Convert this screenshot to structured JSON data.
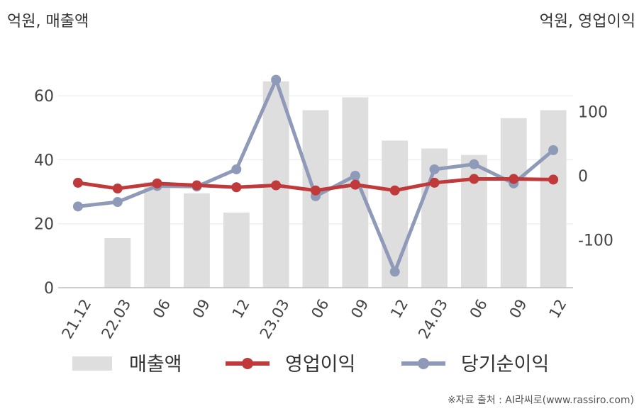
{
  "chart_data": {
    "type": "bar+line",
    "categories": [
      "21.12",
      "22.03",
      "06",
      "09",
      "12",
      "23.03",
      "06",
      "09",
      "12",
      "24.03",
      "06",
      "09",
      "12"
    ],
    "left_axis": {
      "unit_label": "억원, 매출액",
      "ylim": [
        0,
        70
      ],
      "ticks": [
        0,
        20,
        40,
        60
      ]
    },
    "right_axis": {
      "unit_label": "억원, 영업이익",
      "ylim": [
        -175,
        175
      ],
      "ticks": [
        -100,
        0,
        100
      ]
    },
    "series": [
      {
        "name": "매출액",
        "type": "bar",
        "axis": "left",
        "color": "#dedede",
        "values": [
          0,
          15.5,
          33,
          29.5,
          23.5,
          64.5,
          55.5,
          59.5,
          46,
          43.5,
          41.5,
          53,
          55.5
        ]
      },
      {
        "name": "영업이익",
        "type": "line",
        "axis": "right",
        "color": "#c0393b",
        "values": [
          -11,
          -20,
          -12,
          -15,
          -18,
          -15,
          -23,
          -14,
          -23,
          -11,
          -5,
          -5,
          -6
        ]
      },
      {
        "name": "당기순이익",
        "type": "line",
        "axis": "right",
        "color": "#8e9ab8",
        "values": [
          -48,
          -41,
          -16,
          -17,
          10,
          150,
          -32,
          0,
          -150,
          10,
          18,
          -12,
          40
        ]
      }
    ],
    "grid": true,
    "legend_position": "bottom"
  },
  "source_text": "※자료 출처 : AI라씨로(www.rassiro.com)"
}
